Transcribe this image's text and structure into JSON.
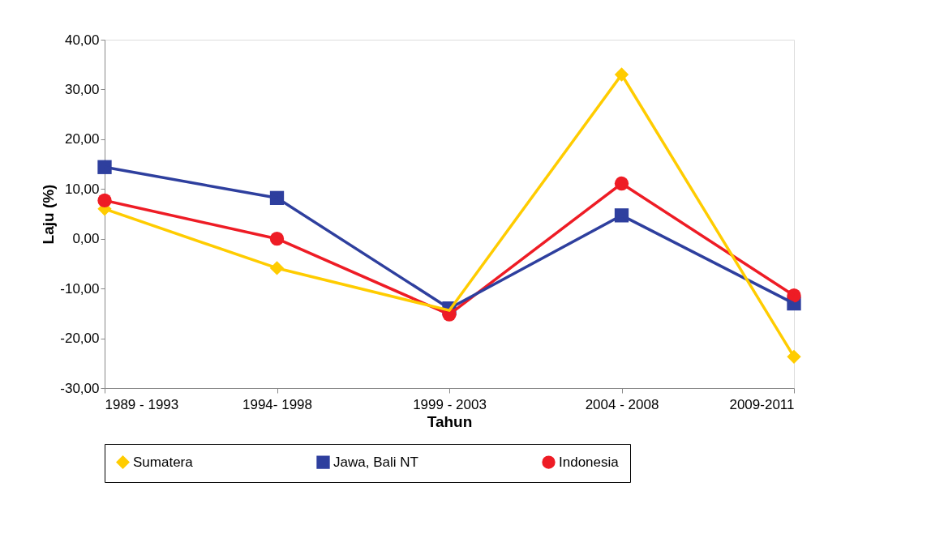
{
  "chart_data": {
    "type": "line",
    "xlabel": "Tahun",
    "ylabel": "Laju (%)",
    "categories": [
      "1989 - 1993",
      "1994- 1998",
      "1999 - 2003",
      "2004 - 2008",
      "2009-2011"
    ],
    "series": [
      {
        "name": "Sumatera",
        "color": "#ffcc00",
        "marker": "diamond",
        "values": [
          6.0,
          -5.9,
          -14.4,
          33.0,
          -23.7
        ]
      },
      {
        "name": "Jawa, Bali NT",
        "color": "#2e3f9e",
        "marker": "square",
        "values": [
          14.4,
          8.2,
          -14.0,
          4.7,
          -13.0
        ]
      },
      {
        "name": "Indonesia",
        "color": "#ee1c25",
        "marker": "circle",
        "values": [
          7.7,
          0.0,
          -15.2,
          11.1,
          -11.4
        ]
      }
    ],
    "ylim": [
      -30,
      40
    ],
    "yticks": [
      {
        "value": -30,
        "label": "-30,00"
      },
      {
        "value": -20,
        "label": "-20,00"
      },
      {
        "value": -10,
        "label": "-10,00"
      },
      {
        "value": 0,
        "label": "0,00"
      },
      {
        "value": 10,
        "label": "10,00"
      },
      {
        "value": 20,
        "label": "20,00"
      },
      {
        "value": 30,
        "label": "30,00"
      },
      {
        "value": 40,
        "label": "40,00"
      }
    ],
    "grid": false,
    "legend": "bottom",
    "line_style": "solid"
  }
}
